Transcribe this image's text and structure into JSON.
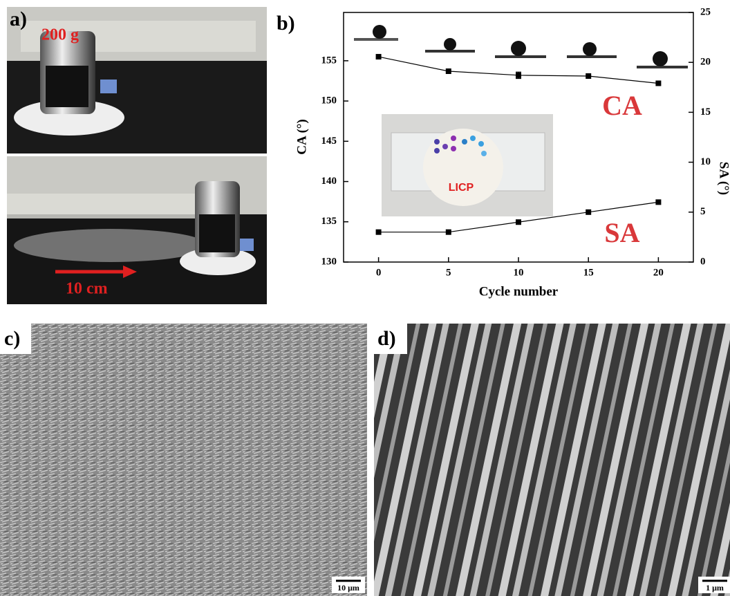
{
  "panels": {
    "a": {
      "label": "a)",
      "weight": "200 g",
      "distance": "10 cm"
    },
    "c": {
      "label": "c)",
      "scale_bar": "10 μm"
    },
    "d": {
      "label": "d)",
      "scale_bar": "1 μm"
    }
  },
  "chart_data": {
    "type": "line",
    "label": "b)",
    "x_label": "Cycle number",
    "y_label": "CA (°)",
    "y2_label": "SA (°)",
    "annotations": [
      "CA",
      "SA",
      "LICP"
    ],
    "x": [
      0,
      5,
      10,
      15,
      20
    ],
    "xlim": [
      -2.5,
      22.5
    ],
    "xticks": [
      0,
      5,
      10,
      15,
      20
    ],
    "ylim": [
      130,
      161
    ],
    "yticks": [
      130,
      135,
      140,
      145,
      150,
      155
    ],
    "y2lim": [
      0,
      25
    ],
    "y2ticks": [
      0,
      5,
      10,
      15,
      20,
      25
    ],
    "series": [
      {
        "name": "CA",
        "color": "#000000",
        "axis": "y",
        "values": [
          155.5,
          153.7,
          153.2,
          153.1,
          152.2
        ],
        "errors": [
          null,
          null,
          0.4,
          null,
          null
        ]
      },
      {
        "name": "SA",
        "color": "#000000",
        "axis": "y2",
        "values": [
          3,
          3,
          4,
          5,
          6
        ]
      }
    ]
  }
}
